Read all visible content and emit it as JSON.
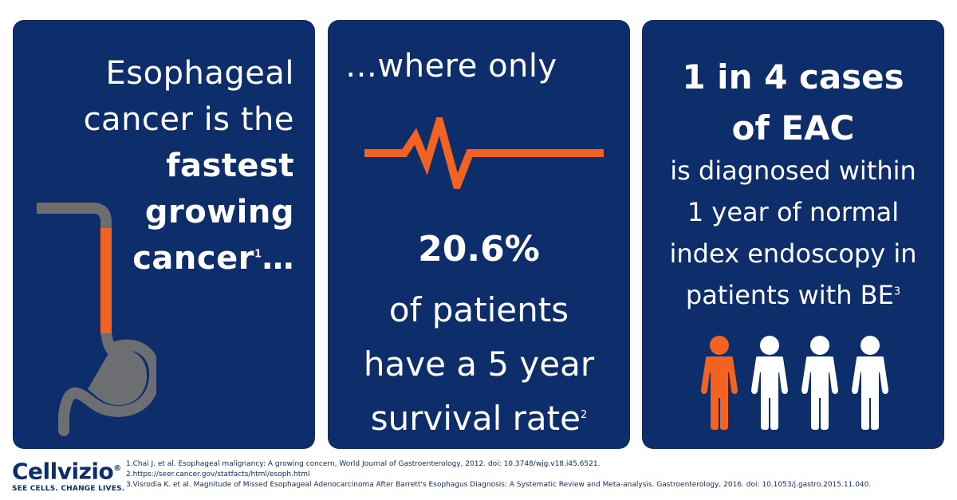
{
  "panel1": {
    "line1": "Esophageal",
    "line2": "cancer is the",
    "line3": "fastest",
    "line4": "growing",
    "line5": "cancer",
    "line5_sup": "1",
    "line5_tail": "…"
  },
  "panel2": {
    "top_text": "…where only",
    "stat": "20.6%",
    "line1": "of patients",
    "line2": "have a 5 year",
    "line3": "survival rate",
    "line3_sup": "2"
  },
  "panel3": {
    "headline1": "1 in 4 cases",
    "headline2": "of EAC",
    "line1": "is diagnosed within",
    "line2": "1 year of normal",
    "line3": "index endoscopy in",
    "line4": "patients with BE",
    "line4_sup": "3"
  },
  "footer": {
    "logo_name": "Cellvizio",
    "logo_reg": "®",
    "tagline": "SEE CELLS. CHANGE LIVES.",
    "refs": [
      "1.Chai J. et al. Esophageal malignancy: A growing concern, World Journal of Gastroenterology, 2012. doi: 10.3748/wjg.v18.i45.6521.",
      "2.https://seer.cancer.gov/statfacts/html/esoph.html",
      "3.Visrodia K. et al. Magnitude of Missed Esophageal Adenocarcinoma After Barrett's Esophagus Diagnosis: A Systematic Review and Meta-analysis. Gastroenterology, 2016. doi: 10.1053/j.gastro.2015.11.040."
    ]
  },
  "colors": {
    "panel": "#0d2d6b",
    "accent": "#f26322",
    "organ": "#6d6e71",
    "text": "#ffffff"
  },
  "icons": [
    "esophagus-illustration",
    "heartbeat-line-icon",
    "person-icon"
  ],
  "people": {
    "highlighted": 1,
    "total": 4
  }
}
